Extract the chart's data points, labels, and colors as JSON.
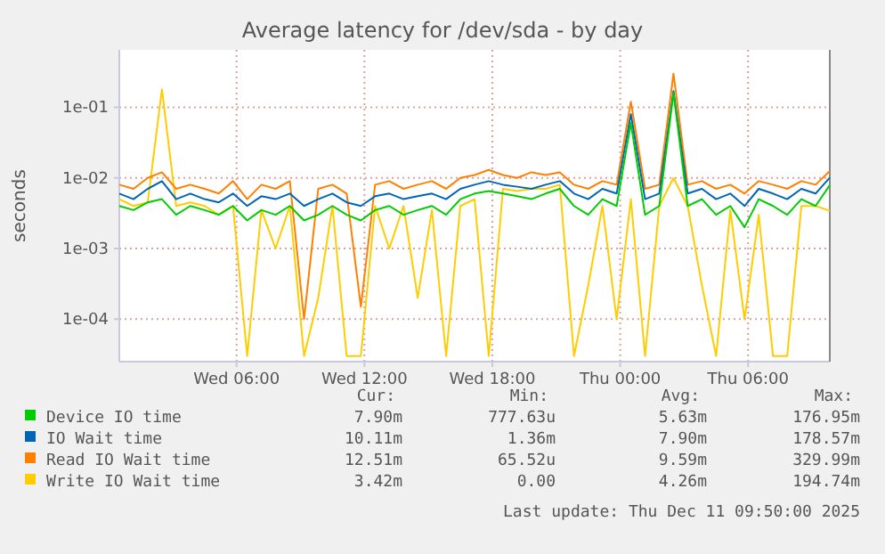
{
  "chart_data": {
    "type": "line",
    "title": "Average latency for /dev/sda - by day",
    "ylabel": "seconds",
    "log": true,
    "grid": true,
    "legend": "bottom",
    "xlim": [
      "2025-12-10T00:30",
      "2025-12-11T09:50"
    ],
    "xticks": [
      {
        "value": "2025-12-10T06:00",
        "label": "Wed 06:00"
      },
      {
        "value": "2025-12-10T12:00",
        "label": "Wed 12:00"
      },
      {
        "value": "2025-12-10T18:00",
        "label": "Wed 18:00"
      },
      {
        "value": "2025-12-11T00:00",
        "label": "Thu 00:00"
      },
      {
        "value": "2025-12-11T06:00",
        "label": "Thu 06:00"
      }
    ],
    "ylim": [
      2.5e-05,
      0.65
    ],
    "yticks": [
      {
        "value": 0.1,
        "label": "1e-01"
      },
      {
        "value": 0.01,
        "label": "1e-02"
      },
      {
        "value": 0.001,
        "label": "1e-03"
      },
      {
        "value": 0.0001,
        "label": "1e-04"
      }
    ],
    "x": [
      "2025-12-10T00:30",
      "2025-12-10T01:10",
      "2025-12-10T01:50",
      "2025-12-10T02:30",
      "2025-12-10T03:10",
      "2025-12-10T03:50",
      "2025-12-10T04:30",
      "2025-12-10T05:10",
      "2025-12-10T05:50",
      "2025-12-10T06:30",
      "2025-12-10T07:10",
      "2025-12-10T07:50",
      "2025-12-10T08:30",
      "2025-12-10T09:10",
      "2025-12-10T09:50",
      "2025-12-10T10:30",
      "2025-12-10T11:10",
      "2025-12-10T11:50",
      "2025-12-10T12:30",
      "2025-12-10T13:10",
      "2025-12-10T13:50",
      "2025-12-10T14:30",
      "2025-12-10T15:10",
      "2025-12-10T15:50",
      "2025-12-10T16:30",
      "2025-12-10T17:10",
      "2025-12-10T17:50",
      "2025-12-10T18:30",
      "2025-12-10T19:10",
      "2025-12-10T19:50",
      "2025-12-10T20:30",
      "2025-12-10T21:10",
      "2025-12-10T21:50",
      "2025-12-10T22:30",
      "2025-12-10T23:10",
      "2025-12-10T23:50",
      "2025-12-11T00:30",
      "2025-12-11T01:10",
      "2025-12-11T01:50",
      "2025-12-11T02:30",
      "2025-12-11T03:10",
      "2025-12-11T03:50",
      "2025-12-11T04:30",
      "2025-12-11T05:10",
      "2025-12-11T05:50",
      "2025-12-11T06:30",
      "2025-12-11T07:10",
      "2025-12-11T07:50",
      "2025-12-11T08:30",
      "2025-12-11T09:10",
      "2025-12-11T09:50"
    ],
    "series": [
      {
        "name": "Write IO Wait time",
        "color": "#ffcc00",
        "values": [
          0.005,
          0.004,
          0.0045,
          0.18,
          0.004,
          0.0045,
          0.004,
          0.003,
          0.004,
          3e-05,
          0.0035,
          0.001,
          0.004,
          3e-05,
          0.0002,
          0.004,
          3e-05,
          3e-05,
          0.004,
          0.001,
          0.004,
          0.0002,
          0.0035,
          3e-05,
          0.004,
          0.005,
          3e-05,
          0.007,
          0.0065,
          0.007,
          0.007,
          0.008,
          3e-05,
          0.0003,
          0.004,
          0.0001,
          0.005,
          3e-05,
          0.004,
          0.01,
          0.004,
          0.0003,
          3e-05,
          0.0035,
          0.0001,
          0.003,
          3e-05,
          3e-05,
          0.004,
          0.004,
          0.00342
        ]
      },
      {
        "name": "Read IO Wait time",
        "color": "#ff8000",
        "values": [
          0.008,
          0.007,
          0.01,
          0.012,
          0.007,
          0.008,
          0.007,
          0.006,
          0.009,
          0.005,
          0.008,
          0.007,
          0.009,
          0.0001,
          0.007,
          0.008,
          0.006,
          0.00015,
          0.008,
          0.009,
          0.007,
          0.008,
          0.009,
          0.007,
          0.01,
          0.011,
          0.013,
          0.011,
          0.01,
          0.012,
          0.011,
          0.012,
          0.008,
          0.007,
          0.009,
          0.008,
          0.12,
          0.007,
          0.008,
          0.3,
          0.008,
          0.009,
          0.007,
          0.008,
          0.006,
          0.009,
          0.008,
          0.007,
          0.009,
          0.008,
          0.0125
        ]
      },
      {
        "name": "IO Wait time",
        "color": "#0066b3",
        "values": [
          0.006,
          0.005,
          0.007,
          0.009,
          0.005,
          0.006,
          0.005,
          0.0045,
          0.006,
          0.004,
          0.0055,
          0.005,
          0.006,
          0.004,
          0.005,
          0.006,
          0.0045,
          0.004,
          0.0055,
          0.006,
          0.005,
          0.0055,
          0.006,
          0.005,
          0.007,
          0.008,
          0.009,
          0.008,
          0.0075,
          0.007,
          0.008,
          0.009,
          0.006,
          0.005,
          0.007,
          0.006,
          0.08,
          0.005,
          0.006,
          0.17,
          0.006,
          0.007,
          0.005,
          0.006,
          0.004,
          0.007,
          0.006,
          0.005,
          0.007,
          0.006,
          0.0101
        ]
      },
      {
        "name": "Device IO time",
        "color": "#00cc00",
        "values": [
          0.004,
          0.0035,
          0.0045,
          0.005,
          0.003,
          0.004,
          0.0035,
          0.003,
          0.004,
          0.0025,
          0.0035,
          0.003,
          0.004,
          0.0025,
          0.003,
          0.004,
          0.003,
          0.0025,
          0.0035,
          0.004,
          0.003,
          0.0035,
          0.004,
          0.003,
          0.005,
          0.006,
          0.0065,
          0.006,
          0.0055,
          0.005,
          0.006,
          0.007,
          0.004,
          0.003,
          0.005,
          0.004,
          0.06,
          0.003,
          0.004,
          0.16,
          0.004,
          0.005,
          0.003,
          0.004,
          0.002,
          0.005,
          0.004,
          0.003,
          0.005,
          0.004,
          0.0079
        ]
      }
    ],
    "annotations": [
      "Cur:",
      "Min:",
      "Avg:",
      "Max:",
      "3.42m",
      "0.00",
      "4.26m",
      "194.74m",
      "12.51m",
      "65.52u",
      "9.59m",
      "329.99m",
      "10.11m",
      "1.36m",
      "7.90m",
      "178.57m",
      "7.90m",
      "777.63u",
      "5.63m",
      "176.95m",
      "Last update: Thu Dec 11 09:50:00 2025"
    ]
  }
}
